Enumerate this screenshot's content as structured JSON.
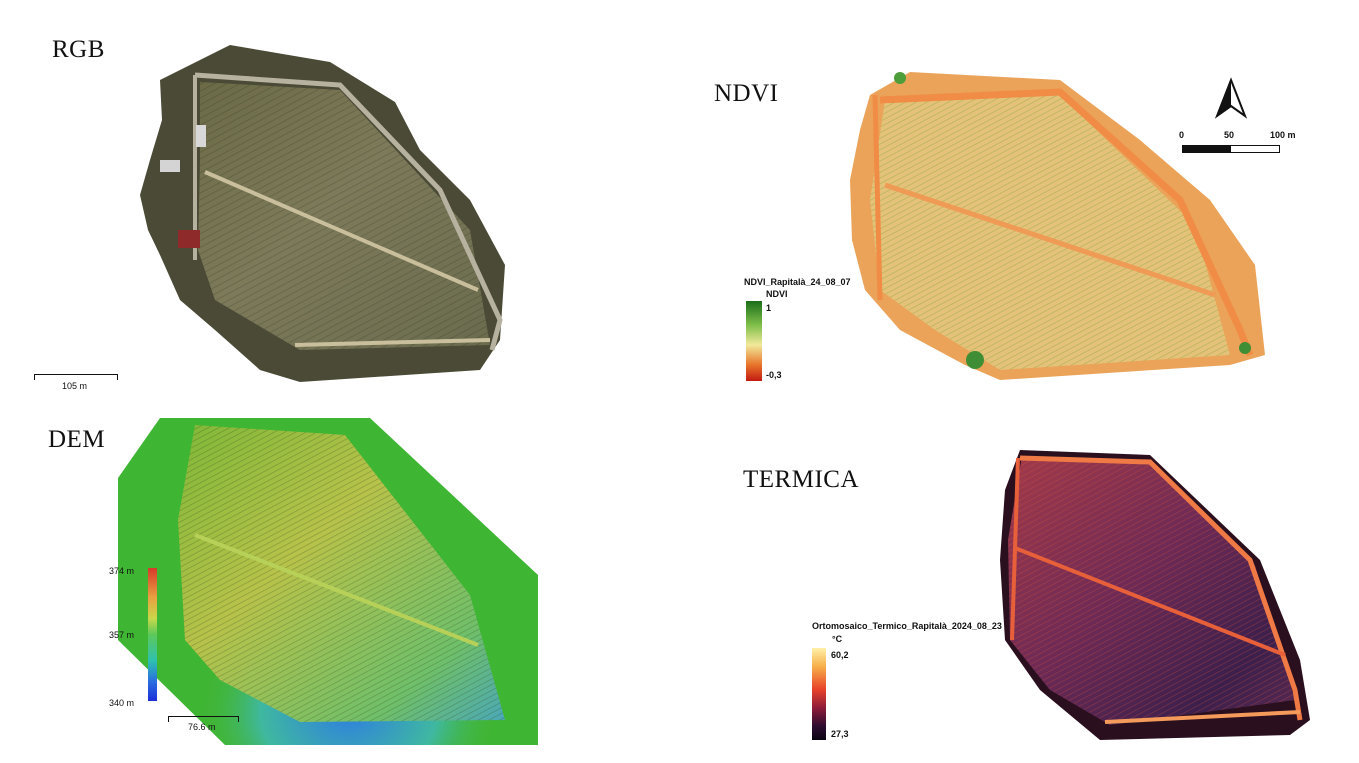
{
  "panels": {
    "rgb": {
      "title": "RGB",
      "scalebar_label": "105 m"
    },
    "ndvi": {
      "title": "NDVI",
      "legend_title": "NDVI_Rapitalà_24_08_07",
      "legend_subtitle": "NDVI",
      "legend_max": "1",
      "legend_min": "-0,3"
    },
    "dem": {
      "title": "DEM",
      "legend_max": "374 m",
      "legend_mid": "357 m",
      "legend_min": "340 m",
      "scalebar_label": "76.6 m"
    },
    "termica": {
      "title": "TERMICA",
      "legend_title": "Ortomosaico_Termico_Rapitalà_2024_08_23",
      "legend_unit": "°C",
      "legend_max": "60,2",
      "legend_min": "27,3"
    }
  },
  "north_arrow": {
    "scale_ticks": [
      "0",
      "50",
      "100 m"
    ]
  },
  "colors": {
    "ndvi_high": "#1a6e1a",
    "ndvi_mid": "#f2e99a",
    "ndvi_low": "#c21a12",
    "dem_high": "#d63a2a",
    "dem_mid": "#5cc95a",
    "dem_low": "#1d2fd8",
    "thermal_high": "#fff0a8",
    "thermal_mid": "#e8432a",
    "thermal_low": "#0a0410"
  }
}
